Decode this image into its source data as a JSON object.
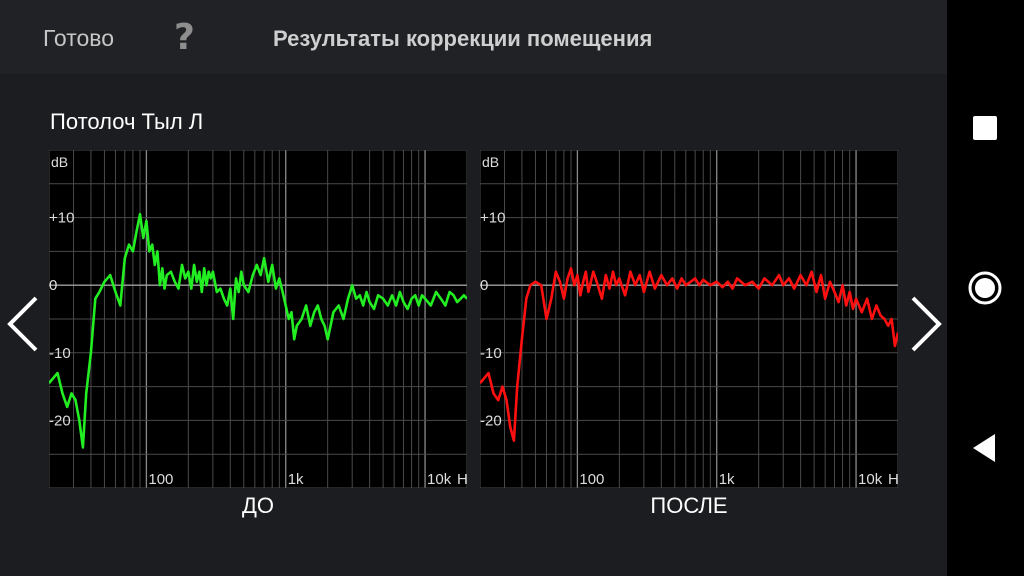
{
  "header": {
    "done_label": "Готово",
    "help_label": "?",
    "title": "Результаты коррекции помещения"
  },
  "speaker": "Потолоч Тыл Л",
  "icons": {
    "prev": "chevron-left-icon",
    "next": "chevron-right-icon",
    "recents": "square-icon",
    "home": "circle-icon",
    "back": "triangle-back-icon"
  },
  "colors": {
    "before_curve": "#22ee22",
    "after_curve": "#ff1010",
    "grid": "#4a4a4a",
    "zero_line": "#a0a0a0"
  },
  "chart_data": [
    {
      "type": "line",
      "label": "ДО",
      "x_scale": "log",
      "xlim": [
        20,
        20000
      ],
      "ylim": [
        -30,
        20
      ],
      "y_unit_label": "dB",
      "x_unit_label": "H",
      "y_ticks": [
        {
          "value": 10,
          "label": "+10"
        },
        {
          "value": 0,
          "label": "0"
        },
        {
          "value": -10,
          "label": "-10"
        },
        {
          "value": -20,
          "label": "-20"
        }
      ],
      "x_ticks": [
        {
          "value": 100,
          "label": "100"
        },
        {
          "value": 1000,
          "label": "1k"
        },
        {
          "value": 10000,
          "label": "10k"
        }
      ],
      "series": [
        {
          "x": [
            20,
            23,
            25,
            27,
            29,
            31,
            33,
            35,
            37,
            40,
            43,
            46,
            50,
            55,
            60,
            65,
            70,
            75,
            80,
            85,
            90,
            95,
            100,
            105,
            110,
            115,
            120,
            125,
            130,
            135,
            140,
            150,
            160,
            170,
            180,
            190,
            200,
            210,
            220,
            230,
            240,
            250,
            260,
            270,
            280,
            290,
            300,
            320,
            340,
            360,
            380,
            400,
            420,
            440,
            460,
            480,
            500,
            540,
            580,
            620,
            660,
            700,
            750,
            800,
            850,
            900,
            950,
            1000,
            1050,
            1100,
            1150,
            1200,
            1300,
            1400,
            1500,
            1600,
            1700,
            1800,
            1900,
            2000,
            2200,
            2400,
            2600,
            2800,
            3000,
            3200,
            3400,
            3600,
            3800,
            4000,
            4300,
            4600,
            5000,
            5400,
            5800,
            6200,
            6600,
            7000,
            7500,
            8000,
            8500,
            9000,
            9500,
            10000,
            11000,
            12000,
            13000,
            14000,
            15000,
            16000,
            17000,
            18000,
            19000,
            20000
          ],
          "y": [
            -14.5,
            -13,
            -16,
            -18,
            -16,
            -17,
            -20,
            -24,
            -16,
            -10,
            -2,
            -1,
            0.5,
            1.5,
            -1,
            -3,
            4,
            6,
            5,
            8,
            10.5,
            7,
            9.5,
            5,
            6,
            3,
            5,
            0,
            2.5,
            -0.5,
            1.5,
            2,
            0.5,
            -0.5,
            3,
            1,
            2,
            -0.5,
            3,
            0.5,
            2,
            -1,
            2.5,
            0,
            2,
            1,
            2,
            -1,
            -0.5,
            -2,
            -3,
            -0.5,
            -5,
            1,
            -1,
            2,
            0,
            -1,
            1.5,
            3,
            1.5,
            4,
            0.5,
            3,
            -0.5,
            1,
            -1,
            -3,
            -5,
            -4,
            -8,
            -6,
            -5,
            -3,
            -6,
            -4,
            -3,
            -5,
            -6,
            -8,
            -4,
            -3,
            -5,
            -2,
            0,
            -2,
            -1.5,
            -3,
            -1,
            -2.5,
            -3.5,
            -1.5,
            -2,
            -3,
            -1.5,
            -3,
            -1,
            -2.5,
            -3.5,
            -2,
            -1.5,
            -3,
            -1.5,
            -2,
            -3,
            -1,
            -2,
            -3,
            -1,
            -1.5,
            -2.5,
            -2,
            -1.5,
            -2
          ]
        }
      ]
    },
    {
      "type": "line",
      "label": "ПОСЛЕ",
      "x_scale": "log",
      "xlim": [
        20,
        20000
      ],
      "ylim": [
        -30,
        20
      ],
      "y_unit_label": "dB",
      "x_unit_label": "H",
      "y_ticks": [
        {
          "value": 10,
          "label": "+10"
        },
        {
          "value": 0,
          "label": "0"
        },
        {
          "value": -10,
          "label": "-10"
        },
        {
          "value": -20,
          "label": "-20"
        }
      ],
      "x_ticks": [
        {
          "value": 100,
          "label": "100"
        },
        {
          "value": 1000,
          "label": "1k"
        },
        {
          "value": 10000,
          "label": "10k"
        }
      ],
      "series": [
        {
          "x": [
            20,
            23,
            25,
            27,
            29,
            31,
            33,
            35,
            37,
            40,
            43,
            46,
            50,
            55,
            60,
            65,
            70,
            75,
            80,
            85,
            90,
            95,
            100,
            105,
            110,
            115,
            120,
            130,
            140,
            150,
            160,
            170,
            180,
            190,
            200,
            220,
            240,
            260,
            280,
            300,
            330,
            360,
            400,
            440,
            480,
            520,
            560,
            600,
            650,
            700,
            750,
            800,
            900,
            1000,
            1100,
            1200,
            1300,
            1400,
            1600,
            1800,
            2000,
            2200,
            2500,
            2800,
            3000,
            3300,
            3600,
            4000,
            4400,
            4800,
            5200,
            5600,
            6000,
            6500,
            7000,
            7500,
            8000,
            8500,
            9000,
            9500,
            10000,
            11000,
            12000,
            13000,
            14000,
            15000,
            16000,
            17000,
            18000,
            19000,
            20000
          ],
          "y": [
            -14.5,
            -13,
            -16,
            -17,
            -15,
            -17,
            -21,
            -23,
            -15,
            -8,
            -2,
            0,
            0.5,
            0,
            -5,
            -2,
            2,
            0.5,
            -2,
            1,
            2.5,
            0,
            1.5,
            -1.5,
            0.5,
            2,
            -1,
            2,
            0,
            -2,
            1.5,
            -0.5,
            2,
            0,
            1,
            -1.5,
            2,
            0,
            1.5,
            -1,
            2,
            -0.5,
            1.5,
            0,
            1,
            -0.5,
            1,
            0,
            0.5,
            1,
            0,
            0.8,
            0,
            0.5,
            -0.3,
            0.5,
            -0.5,
            1,
            0,
            0.5,
            -0.5,
            1,
            0,
            1.5,
            0,
            1,
            -0.5,
            1.5,
            0,
            2,
            -1,
            1.5,
            -2,
            0.5,
            -1,
            -2.5,
            0,
            -3,
            -1,
            -3.5,
            -2,
            -4,
            -2,
            -5,
            -3,
            -4.5,
            -5,
            -6,
            -5,
            -9,
            -7
          ]
        }
      ]
    }
  ]
}
